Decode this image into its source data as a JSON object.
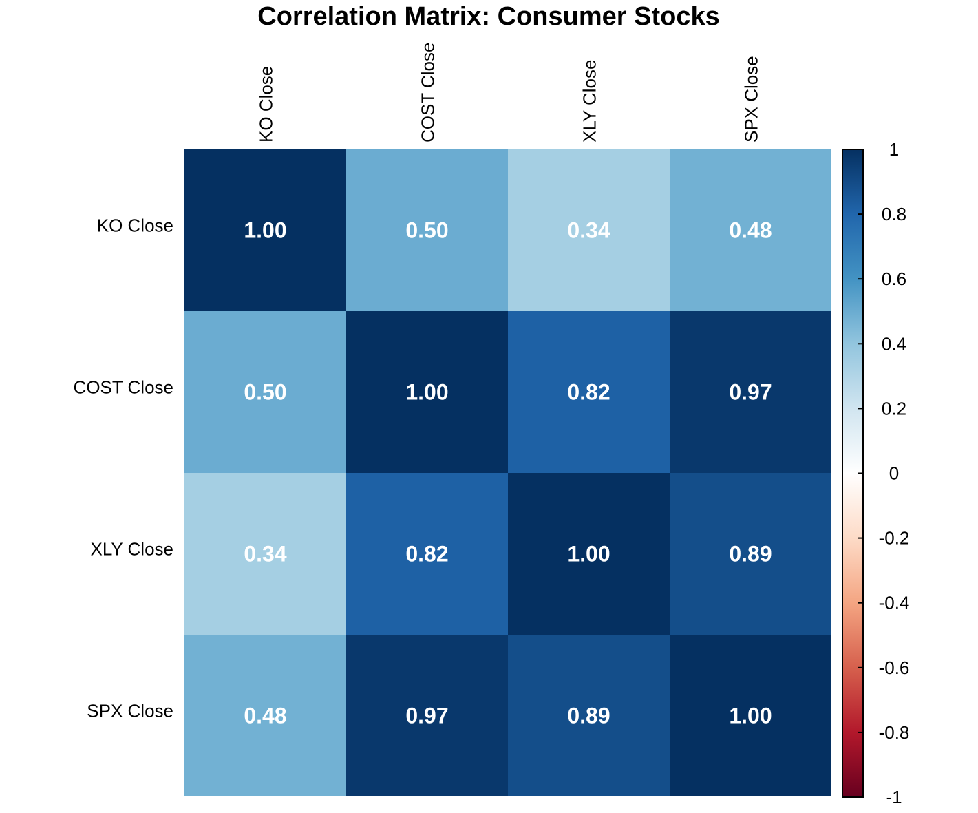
{
  "chart_data": {
    "type": "heatmap",
    "title": "Correlation Matrix: Consumer Stocks",
    "rows": [
      "KO Close",
      "COST Close",
      "XLY Close",
      "SPX Close"
    ],
    "columns": [
      "KO Close",
      "COST Close",
      "XLY Close",
      "SPX Close"
    ],
    "values": [
      [
        1.0,
        0.5,
        0.34,
        0.48
      ],
      [
        0.5,
        1.0,
        0.82,
        0.97
      ],
      [
        0.34,
        0.82,
        1.0,
        0.89
      ],
      [
        0.48,
        0.97,
        0.89,
        1.0
      ]
    ],
    "value_labels": [
      [
        "1.00",
        "0.50",
        "0.34",
        "0.48"
      ],
      [
        "0.50",
        "1.00",
        "0.82",
        "0.97"
      ],
      [
        "0.34",
        "0.82",
        "1.00",
        "0.89"
      ],
      [
        "0.48",
        "0.97",
        "0.89",
        "1.00"
      ]
    ],
    "colorbar": {
      "range": [
        -1,
        1
      ],
      "ticks": [
        1,
        0.8,
        0.6,
        0.4,
        0.2,
        0,
        -0.2,
        -0.4,
        -0.6,
        -0.8,
        -1
      ],
      "tick_labels": [
        "1",
        "0.8",
        "0.6",
        "0.4",
        "0.2",
        "0",
        "-0.2",
        "-0.4",
        "-0.6",
        "-0.8",
        "-1"
      ],
      "placement": "right"
    },
    "color_scale": [
      "#67001F",
      "#B2182B",
      "#D6604D",
      "#F4A582",
      "#FDDBC7",
      "#FFFFFF",
      "#D1E5F0",
      "#92C5DE",
      "#4393C3",
      "#2166AC",
      "#053061"
    ],
    "grid": false
  }
}
